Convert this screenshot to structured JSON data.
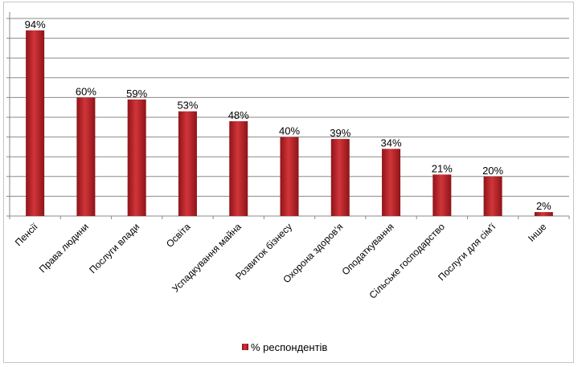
{
  "chart_data": {
    "type": "bar",
    "title": "",
    "xlabel": "",
    "ylabel": "",
    "ylim": [
      0,
      100
    ],
    "grid": true,
    "legend": "bottom-center",
    "categories": [
      "Пенсії",
      "Права людини",
      "Послуги влади",
      "Освіта",
      "Успадкування майна",
      "Розвиток бізнесу",
      "Охорона здоров'я",
      "Оподаткування",
      "Сільське господарство",
      "Послуги для сім'ї",
      "Інше"
    ],
    "series": [
      {
        "name": "% респондентів",
        "values": [
          94,
          60,
          59,
          53,
          48,
          40,
          39,
          34,
          21,
          20,
          2
        ],
        "color": "#c0282d"
      }
    ],
    "data_labels": [
      "94%",
      "60%",
      "59%",
      "53%",
      "48%",
      "40%",
      "39%",
      "34%",
      "21%",
      "20%",
      "2%"
    ]
  }
}
